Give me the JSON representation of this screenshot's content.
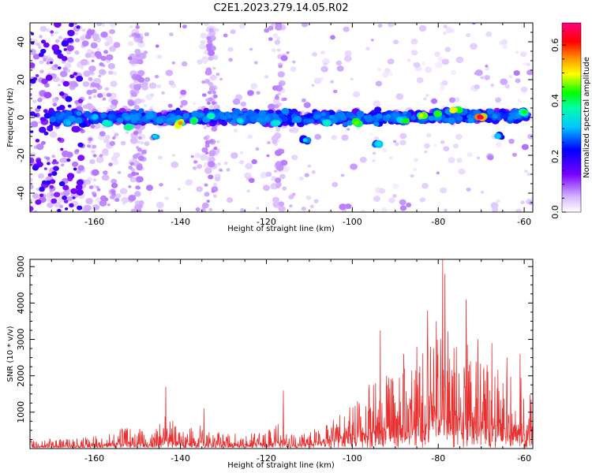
{
  "title": "C2E1.2023.279.14.05.R02",
  "chart_data": [
    {
      "type": "heatmap",
      "xlabel": "Height of straight line (km)",
      "ylabel": "Frequency (Hz)",
      "xlim": [
        -175,
        -58
      ],
      "ylim": [
        -50,
        50
      ],
      "x_ticks": [
        "-160",
        "-140",
        "-120",
        "-100",
        "-80",
        "-60"
      ],
      "y_ticks": [
        "40",
        "20",
        "0",
        "-20",
        "-40"
      ],
      "colorbar": {
        "label": "Normalized spectral amplitude",
        "range": [
          0.0,
          0.68
        ],
        "ticks": [
          "0.0",
          "0.2",
          "0.4",
          "0.6"
        ],
        "colors": [
          "#ffffff",
          "#e0c8ff",
          "#7700ff",
          "#0000ff",
          "#00ffff",
          "#00ff00",
          "#ffff00",
          "#ff8800",
          "#ff0000",
          "#ff0080"
        ]
      },
      "band": {
        "center_freq_hz": 0,
        "width_hz": 8
      },
      "peaks": [
        {
          "x": -166,
          "y": -3,
          "v": 0.3
        },
        {
          "x": -160,
          "y": 0,
          "v": 0.3
        },
        {
          "x": -157,
          "y": -3,
          "v": 0.35
        },
        {
          "x": -152,
          "y": -5,
          "v": 0.38
        },
        {
          "x": -146,
          "y": -10,
          "v": 0.32
        },
        {
          "x": -140,
          "y": -3,
          "v": 0.55
        },
        {
          "x": -137,
          "y": -2,
          "v": 0.4
        },
        {
          "x": -133,
          "y": 1,
          "v": 0.36
        },
        {
          "x": -126,
          "y": -2,
          "v": 0.34
        },
        {
          "x": -118,
          "y": -3,
          "v": 0.34
        },
        {
          "x": -111,
          "y": -12,
          "v": 0.32
        },
        {
          "x": -106,
          "y": -3,
          "v": 0.35
        },
        {
          "x": -99,
          "y": -3,
          "v": 0.45
        },
        {
          "x": -94,
          "y": -14,
          "v": 0.32
        },
        {
          "x": -88,
          "y": -2,
          "v": 0.42
        },
        {
          "x": -84,
          "y": 1,
          "v": 0.48
        },
        {
          "x": -80,
          "y": 2,
          "v": 0.44
        },
        {
          "x": -76,
          "y": 4,
          "v": 0.5
        },
        {
          "x": -70,
          "y": 0,
          "v": 0.66
        },
        {
          "x": -66,
          "y": -10,
          "v": 0.3
        },
        {
          "x": -60,
          "y": 3,
          "v": 0.42
        }
      ]
    },
    {
      "type": "line",
      "xlabel": "Height of straight line (km)",
      "ylabel": "SNR (10 * v/v)",
      "xlim": [
        -175,
        -58
      ],
      "ylim": [
        0,
        5200
      ],
      "x_ticks": [
        "-160",
        "-140",
        "-120",
        "-100",
        "-80",
        "-60"
      ],
      "y_ticks": [
        "1000",
        "2000",
        "3000",
        "4000",
        "5000"
      ],
      "line_color": "#e83030",
      "envelope": [
        {
          "x": -175,
          "y": 250
        },
        {
          "x": -165,
          "y": 250
        },
        {
          "x": -160,
          "y": 350
        },
        {
          "x": -155,
          "y": 500
        },
        {
          "x": -150,
          "y": 600
        },
        {
          "x": -147,
          "y": 300
        },
        {
          "x": -145,
          "y": 700
        },
        {
          "x": -143,
          "y": 1000
        },
        {
          "x": -140,
          "y": 450
        },
        {
          "x": -135,
          "y": 650
        },
        {
          "x": -130,
          "y": 400
        },
        {
          "x": -125,
          "y": 400
        },
        {
          "x": -120,
          "y": 450
        },
        {
          "x": -117,
          "y": 700
        },
        {
          "x": -115,
          "y": 350
        },
        {
          "x": -110,
          "y": 450
        },
        {
          "x": -105,
          "y": 700
        },
        {
          "x": -100,
          "y": 1200
        },
        {
          "x": -95,
          "y": 1800
        },
        {
          "x": -90,
          "y": 2000
        },
        {
          "x": -85,
          "y": 2400
        },
        {
          "x": -80,
          "y": 3000
        },
        {
          "x": -77,
          "y": 3100
        },
        {
          "x": -73,
          "y": 2800
        },
        {
          "x": -70,
          "y": 2300
        },
        {
          "x": -65,
          "y": 2100
        },
        {
          "x": -60,
          "y": 1900
        },
        {
          "x": -58,
          "y": 1700
        }
      ],
      "spikes": [
        {
          "x": -143.4,
          "y": 1700
        },
        {
          "x": -134.5,
          "y": 1100
        },
        {
          "x": -116,
          "y": 1600
        },
        {
          "x": -98.8,
          "y": 1300
        },
        {
          "x": -93.5,
          "y": 3250
        },
        {
          "x": -88,
          "y": 2600
        },
        {
          "x": -85,
          "y": 2800
        },
        {
          "x": -82.5,
          "y": 3800
        },
        {
          "x": -80.5,
          "y": 3500
        },
        {
          "x": -79,
          "y": 5200
        },
        {
          "x": -78.4,
          "y": 4800
        },
        {
          "x": -73.5,
          "y": 4100
        },
        {
          "x": -70.8,
          "y": 3000
        },
        {
          "x": -67.5,
          "y": 2900
        },
        {
          "x": -64,
          "y": 2500
        },
        {
          "x": -61,
          "y": 2600
        }
      ]
    }
  ]
}
